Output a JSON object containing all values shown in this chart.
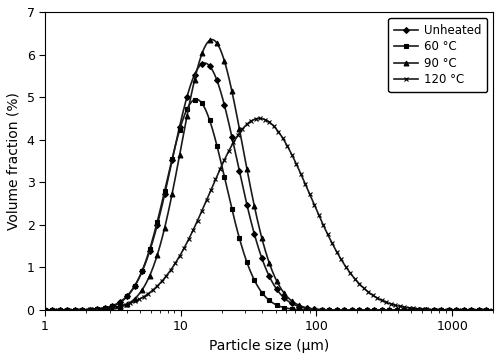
{
  "title": "",
  "xlabel": "Particle size (μm)",
  "ylabel": "Volume fraction (%)",
  "xlim": [
    1,
    2000
  ],
  "ylim": [
    0,
    7
  ],
  "yticks": [
    0,
    1,
    2,
    3,
    4,
    5,
    6,
    7
  ],
  "background_color": "#ffffff",
  "curves": [
    {
      "label": "Unheated",
      "marker": "D",
      "peak_x": 15.0,
      "peak_y": 5.8,
      "sigma": 0.55,
      "color": "#1a1a1a",
      "markersize": 3.0,
      "markevery": 10,
      "lw": 1.2
    },
    {
      "label": "60 °C",
      "marker": "s",
      "peak_x": 13.0,
      "peak_y": 4.95,
      "sigma": 0.5,
      "color": "#1a1a1a",
      "markersize": 3.0,
      "markevery": 10,
      "lw": 1.2
    },
    {
      "label": "90 °C",
      "marker": "^",
      "peak_x": 17.0,
      "peak_y": 6.35,
      "sigma": 0.52,
      "color": "#1a1a1a",
      "markersize": 3.5,
      "markevery": 10,
      "lw": 1.2
    },
    {
      "label": "120 °C",
      "marker": "x",
      "peak_x": 38.0,
      "peak_y": 4.5,
      "sigma": 0.85,
      "color": "#1a1a1a",
      "markersize": 3.5,
      "markevery": 6,
      "lw": 1.2
    }
  ]
}
